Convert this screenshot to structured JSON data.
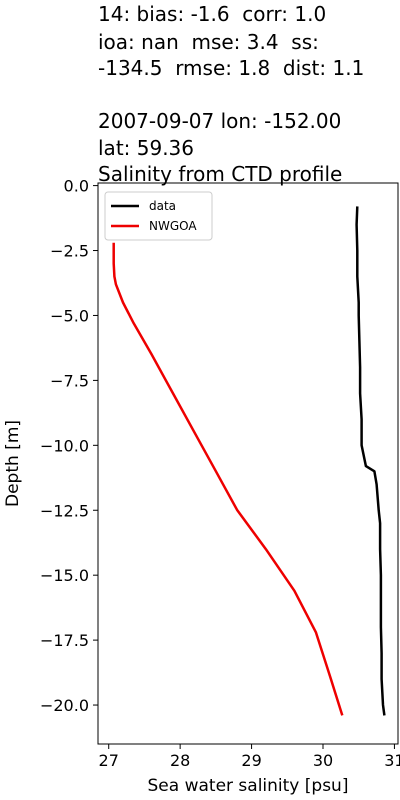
{
  "title": {
    "lines": [
      "14: bias: -1.6  corr: 1.0",
      "ioa: nan  mse: 3.4  ss:",
      "-134.5  rmse: 1.8  dist: 1.1",
      "",
      "2007-09-07 lon: -152.00",
      "lat: 59.36",
      "Salinity from CTD profile"
    ]
  },
  "chart_data": {
    "type": "line",
    "xlabel": "Sea water salinity [psu]",
    "ylabel": "Depth [m]",
    "xlim": [
      26.85,
      31.05
    ],
    "ylim": [
      -21.5,
      0.1
    ],
    "xticks": [
      27,
      28,
      29,
      30,
      31
    ],
    "yticks": [
      0.0,
      -2.5,
      -5.0,
      -7.5,
      -10.0,
      -12.5,
      -15.0,
      -17.5,
      -20.0
    ],
    "ytick_labels": [
      "0.0",
      "−2.5",
      "−5.0",
      "−7.5",
      "−10.0",
      "−12.5",
      "−15.0",
      "−17.5",
      "−20.0"
    ],
    "legend_position": "upper-left",
    "series": [
      {
        "name": "data",
        "color": "#000000",
        "x": [
          30.48,
          30.47,
          30.48,
          30.48,
          30.5,
          30.5,
          30.51,
          30.52,
          30.52,
          30.54,
          30.54,
          30.6,
          30.72,
          30.75,
          30.78,
          30.8,
          30.8,
          30.81,
          30.81,
          30.81,
          30.82,
          30.82,
          30.84,
          30.86
        ],
        "y": [
          -0.8,
          -1.5,
          -2.5,
          -3.5,
          -4.5,
          -5.0,
          -6.0,
          -7.0,
          -8.0,
          -9.0,
          -10.0,
          -10.8,
          -11.0,
          -11.5,
          -12.5,
          -13.0,
          -14.0,
          -15.0,
          -16.0,
          -17.0,
          -18.0,
          -19.0,
          -20.0,
          -20.4
        ]
      },
      {
        "name": "NWGOA",
        "color": "#ee0000",
        "x": [
          27.07,
          27.07,
          27.08,
          27.1,
          27.2,
          27.35,
          27.6,
          27.9,
          28.2,
          28.5,
          28.8,
          29.2,
          29.6,
          29.9,
          30.1,
          30.27
        ],
        "y": [
          -2.2,
          -3.0,
          -3.5,
          -3.8,
          -4.5,
          -5.3,
          -6.5,
          -8.0,
          -9.5,
          -11.0,
          -12.5,
          -14.0,
          -15.6,
          -17.2,
          -18.9,
          -20.4
        ]
      }
    ]
  }
}
